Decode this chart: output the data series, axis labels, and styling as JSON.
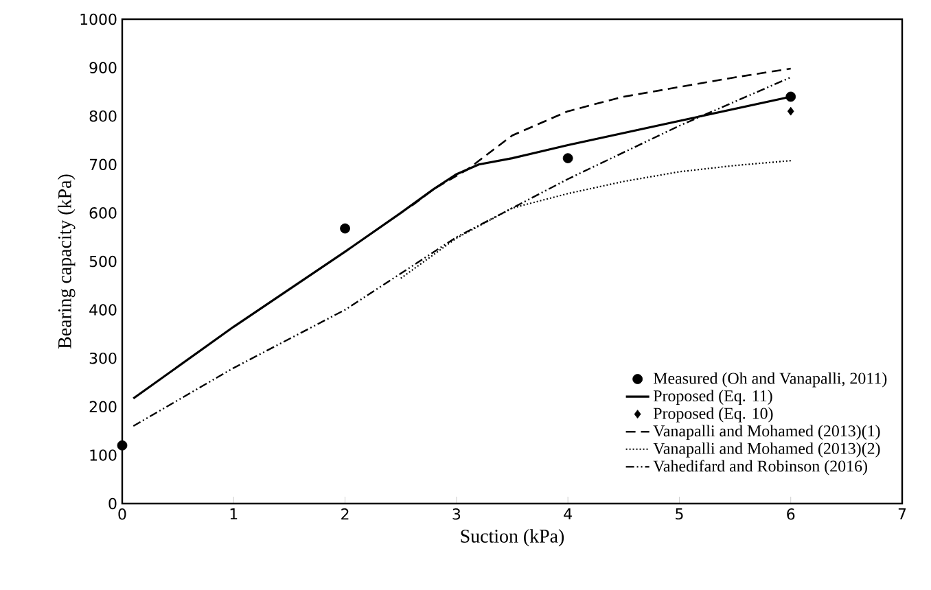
{
  "chart_data": {
    "type": "line",
    "xlabel": "Suction (kPa)",
    "ylabel": "Bearing capacity (kPa)",
    "xlim": [
      0,
      7
    ],
    "ylim": [
      0,
      1000
    ],
    "xticks": [
      0,
      1,
      2,
      3,
      4,
      5,
      6,
      7
    ],
    "yticks": [
      0,
      100,
      200,
      300,
      400,
      500,
      600,
      700,
      800,
      900,
      1000
    ],
    "legend": "bottom right",
    "series": [
      {
        "name": "Measured (Oh and Vanapalli, 2011)",
        "type": "scatter",
        "marker": "circle",
        "color": "#000000",
        "x": [
          0,
          2,
          4,
          6
        ],
        "values": [
          120,
          568,
          713,
          840
        ]
      },
      {
        "name": "Proposed (Eq. 11)",
        "line_style": "solid",
        "color": "#000000",
        "x": [
          0.1,
          1,
          2,
          2.5,
          2.8,
          3,
          3.2,
          3.5,
          4,
          5,
          6
        ],
        "values": [
          217,
          365,
          520,
          600,
          650,
          680,
          700,
          713,
          740,
          790,
          840
        ]
      },
      {
        "name": "Proposed (Eq. 10)",
        "type": "scatter",
        "marker": "diamond",
        "color": "#000000",
        "x": [
          6
        ],
        "values": [
          810
        ]
      },
      {
        "name": "Vanapalli and Mohamed (2013)(1)",
        "line_style": "dashed",
        "color": "#000000",
        "x": [
          2.6,
          2.8,
          3.1,
          3.5,
          4,
          4.5,
          5,
          5.5,
          6
        ],
        "values": [
          615,
          650,
          690,
          760,
          810,
          840,
          860,
          880,
          898
        ]
      },
      {
        "name": "Vanapalli and Mohamed (2013)(2)",
        "line_style": "dotted",
        "color": "#000000",
        "x": [
          2.5,
          3,
          3.5,
          4,
          4.5,
          5,
          5.5,
          6
        ],
        "values": [
          465,
          548,
          610,
          640,
          665,
          685,
          698,
          708
        ]
      },
      {
        "name": "Vahedifard and Robinson (2016)",
        "line_style": "dashdotdotted",
        "color": "#000000",
        "x": [
          0.1,
          1,
          2,
          3,
          3.5,
          4,
          5,
          6
        ],
        "values": [
          160,
          280,
          400,
          550,
          610,
          670,
          780,
          880
        ]
      }
    ]
  }
}
